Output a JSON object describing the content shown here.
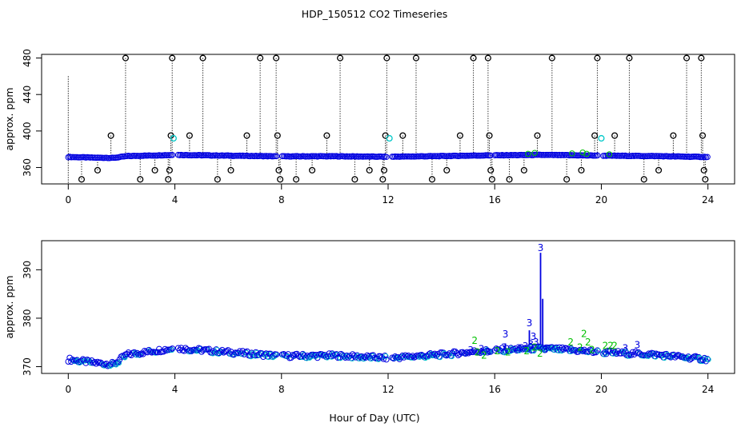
{
  "title": "HDP_150512  CO2 Timeseries",
  "xlabel": "Hour of Day (UTC)",
  "colors": {
    "frame": "#000000",
    "raw": "#000000",
    "flag1": "#00c8c8",
    "flag2": "#00c000",
    "flag3": "#0000e0"
  },
  "chart_data": [
    {
      "type": "scatter",
      "panel": "top",
      "ylabel": "approx. ppm",
      "xlim": [
        -1.0,
        25.0
      ],
      "ylim": [
        342,
        484
      ],
      "xticks": [
        0,
        4,
        8,
        12,
        16,
        20,
        24
      ],
      "yticks": [
        360,
        400,
        440,
        480
      ],
      "baseline": [
        [
          0,
          371.5
        ],
        [
          1.0,
          370.8
        ],
        [
          1.7,
          370.5
        ],
        [
          2.2,
          372.5
        ],
        [
          4.0,
          373.8
        ],
        [
          6.0,
          373.0
        ],
        [
          8.0,
          372.2
        ],
        [
          10.0,
          372.3
        ],
        [
          12.0,
          371.8
        ],
        [
          14.0,
          372.5
        ],
        [
          15.5,
          373.2
        ],
        [
          16.5,
          373.5
        ],
        [
          17.8,
          373.8
        ],
        [
          20.0,
          373.0
        ],
        [
          22.0,
          372.5
        ],
        [
          24.0,
          371.5
        ]
      ],
      "gaps": [
        [
          3.95,
          4.1
        ],
        [
          7.85,
          8.0
        ],
        [
          11.95,
          12.1
        ],
        [
          15.85,
          16.0
        ],
        [
          19.9,
          20.05
        ]
      ],
      "outliers": [
        {
          "x": 0.5,
          "y": 347
        },
        {
          "x": 1.1,
          "y": 357
        },
        {
          "x": 1.6,
          "y": 395
        },
        {
          "x": 2.15,
          "y": 480
        },
        {
          "x": 2.7,
          "y": 347
        },
        {
          "x": 3.25,
          "y": 357
        },
        {
          "x": 3.75,
          "y": 347
        },
        {
          "x": 3.8,
          "y": 357
        },
        {
          "x": 3.85,
          "y": 395
        },
        {
          "x": 3.9,
          "y": 480
        },
        {
          "x": 4.55,
          "y": 395
        },
        {
          "x": 5.05,
          "y": 480
        },
        {
          "x": 5.6,
          "y": 347
        },
        {
          "x": 6.1,
          "y": 357
        },
        {
          "x": 6.7,
          "y": 395
        },
        {
          "x": 7.2,
          "y": 480
        },
        {
          "x": 7.8,
          "y": 480
        },
        {
          "x": 7.85,
          "y": 395
        },
        {
          "x": 7.9,
          "y": 357
        },
        {
          "x": 7.95,
          "y": 347
        },
        {
          "x": 8.55,
          "y": 347
        },
        {
          "x": 9.15,
          "y": 357
        },
        {
          "x": 9.7,
          "y": 395
        },
        {
          "x": 10.2,
          "y": 480
        },
        {
          "x": 10.75,
          "y": 347
        },
        {
          "x": 11.3,
          "y": 357
        },
        {
          "x": 11.8,
          "y": 347
        },
        {
          "x": 11.85,
          "y": 357
        },
        {
          "x": 11.9,
          "y": 395
        },
        {
          "x": 11.95,
          "y": 480
        },
        {
          "x": 12.55,
          "y": 395
        },
        {
          "x": 13.05,
          "y": 480
        },
        {
          "x": 13.65,
          "y": 347
        },
        {
          "x": 14.2,
          "y": 357
        },
        {
          "x": 14.7,
          "y": 395
        },
        {
          "x": 15.2,
          "y": 480
        },
        {
          "x": 15.75,
          "y": 480
        },
        {
          "x": 15.8,
          "y": 395
        },
        {
          "x": 15.85,
          "y": 357
        },
        {
          "x": 15.9,
          "y": 347
        },
        {
          "x": 16.55,
          "y": 347
        },
        {
          "x": 17.1,
          "y": 357
        },
        {
          "x": 17.6,
          "y": 395
        },
        {
          "x": 18.15,
          "y": 480
        },
        {
          "x": 18.7,
          "y": 347
        },
        {
          "x": 19.25,
          "y": 357
        },
        {
          "x": 19.75,
          "y": 395
        },
        {
          "x": 19.85,
          "y": 480
        },
        {
          "x": 20.5,
          "y": 395
        },
        {
          "x": 21.05,
          "y": 480
        },
        {
          "x": 21.6,
          "y": 347
        },
        {
          "x": 22.15,
          "y": 357
        },
        {
          "x": 22.7,
          "y": 395
        },
        {
          "x": 23.2,
          "y": 480
        },
        {
          "x": 23.75,
          "y": 480
        },
        {
          "x": 23.8,
          "y": 395
        },
        {
          "x": 23.85,
          "y": 357
        },
        {
          "x": 23.9,
          "y": 347
        }
      ],
      "cyan_markers": [
        {
          "x": 3.95,
          "y": 392
        },
        {
          "x": 12.05,
          "y": 392
        },
        {
          "x": 20.0,
          "y": 392
        }
      ],
      "spikes": [
        {
          "x": 0.0,
          "top": 460,
          "bottom": 342
        }
      ]
    },
    {
      "type": "scatter",
      "panel": "bottom",
      "ylabel": "approx. ppm",
      "xlim": [
        -1.0,
        25.0
      ],
      "ylim": [
        368.6,
        396
      ],
      "xticks": [
        0,
        4,
        8,
        12,
        16,
        20,
        24
      ],
      "yticks": [
        370,
        380,
        390
      ],
      "baseline": [
        [
          0,
          371.5
        ],
        [
          1.0,
          370.8
        ],
        [
          1.7,
          370.5
        ],
        [
          2.2,
          372.5
        ],
        [
          4.0,
          373.8
        ],
        [
          6.0,
          373.0
        ],
        [
          8.0,
          372.2
        ],
        [
          10.0,
          372.3
        ],
        [
          12.0,
          371.8
        ],
        [
          14.0,
          372.5
        ],
        [
          15.5,
          373.2
        ],
        [
          16.5,
          373.5
        ],
        [
          17.8,
          373.8
        ],
        [
          20.0,
          373.0
        ],
        [
          22.0,
          372.5
        ],
        [
          24.0,
          371.5
        ]
      ],
      "gaps": [
        [
          3.95,
          4.1
        ],
        [
          7.85,
          8.0
        ],
        [
          11.95,
          12.1
        ],
        [
          15.85,
          16.0
        ],
        [
          19.9,
          20.05
        ]
      ],
      "spikes": [
        {
          "x": 16.4,
          "top": 374.8
        },
        {
          "x": 17.3,
          "top": 377.5
        },
        {
          "x": 17.72,
          "top": 393.5
        },
        {
          "x": 17.8,
          "top": 384.0
        }
      ],
      "flag_labels": [
        {
          "x": 15.1,
          "y": 373.4,
          "flag": "3"
        },
        {
          "x": 15.25,
          "y": 375.4,
          "flag": "2"
        },
        {
          "x": 15.35,
          "y": 373.0,
          "flag": "2"
        },
        {
          "x": 15.5,
          "y": 373.6,
          "flag": "3"
        },
        {
          "x": 15.6,
          "y": 372.3,
          "flag": "2"
        },
        {
          "x": 15.75,
          "y": 373.0,
          "flag": "3"
        },
        {
          "x": 16.1,
          "y": 373.2,
          "flag": "2"
        },
        {
          "x": 16.35,
          "y": 374.0,
          "flag": "3"
        },
        {
          "x": 16.4,
          "y": 376.7,
          "flag": "3"
        },
        {
          "x": 16.5,
          "y": 373.0,
          "flag": "2"
        },
        {
          "x": 16.9,
          "y": 373.8,
          "flag": "3"
        },
        {
          "x": 17.15,
          "y": 374.2,
          "flag": "3"
        },
        {
          "x": 17.2,
          "y": 373.2,
          "flag": "2"
        },
        {
          "x": 17.3,
          "y": 379.0,
          "flag": "3"
        },
        {
          "x": 17.35,
          "y": 374.6,
          "flag": "3"
        },
        {
          "x": 17.45,
          "y": 376.2,
          "flag": "3"
        },
        {
          "x": 17.5,
          "y": 374.0,
          "flag": "2"
        },
        {
          "x": 17.55,
          "y": 375.0,
          "flag": "3"
        },
        {
          "x": 17.72,
          "y": 394.5,
          "flag": "3"
        },
        {
          "x": 17.7,
          "y": 372.7,
          "flag": "2"
        },
        {
          "x": 17.9,
          "y": 373.5,
          "flag": "3"
        },
        {
          "x": 18.85,
          "y": 375.0,
          "flag": "2"
        },
        {
          "x": 19.2,
          "y": 374.0,
          "flag": "2"
        },
        {
          "x": 19.35,
          "y": 376.8,
          "flag": "2"
        },
        {
          "x": 19.5,
          "y": 375.0,
          "flag": "2"
        },
        {
          "x": 19.65,
          "y": 373.5,
          "flag": "2"
        },
        {
          "x": 20.15,
          "y": 374.3,
          "flag": "2"
        },
        {
          "x": 20.35,
          "y": 374.3,
          "flag": "2"
        },
        {
          "x": 20.5,
          "y": 374.3,
          "flag": "2"
        },
        {
          "x": 20.9,
          "y": 373.8,
          "flag": "3"
        },
        {
          "x": 21.35,
          "y": 374.5,
          "flag": "3"
        }
      ]
    }
  ]
}
